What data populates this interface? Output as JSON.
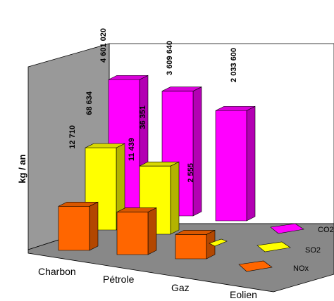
{
  "chart_data": {
    "type": "bar",
    "title": "",
    "xlabel": "",
    "ylabel": "kg / an",
    "categories": [
      "Charbon",
      "Pétrole",
      "Gaz",
      "Eolien"
    ],
    "series": [
      {
        "name": "NOx",
        "values": [
          12710,
          11439,
          2555,
          null
        ],
        "labels": [
          "12 710",
          "11 439",
          "2 555",
          ""
        ],
        "color": "#ff6600"
      },
      {
        "name": "SO2",
        "values": [
          68634,
          36351,
          null,
          null
        ],
        "labels": [
          "68 634",
          "36 351",
          "",
          ""
        ],
        "color": "#ffff00"
      },
      {
        "name": "CO2",
        "values": [
          4601020,
          3609640,
          2033600,
          null
        ],
        "labels": [
          "4 601 020",
          "3 609 640",
          "2 033 600",
          ""
        ],
        "color": "#ff00ff"
      }
    ],
    "grid": false,
    "legend": "right"
  }
}
